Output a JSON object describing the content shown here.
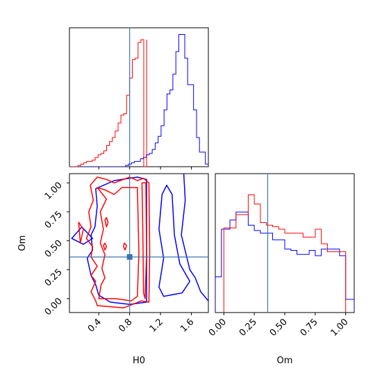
{
  "chart_data": {
    "type": "corner",
    "parameters": [
      "H0",
      "Om"
    ],
    "truth": {
      "H0": 0.8,
      "Om": 0.36
    },
    "series": [
      {
        "name": "",
        "color": "#ff0000"
      },
      {
        "name": "",
        "color": "#0000ff"
      }
    ],
    "truth_color": "#3b75af",
    "panels": {
      "H0_hist": {
        "type": "histogram",
        "xlim": [
          0.02,
          1.82
        ],
        "ylim": [
          0,
          1.05
        ],
        "red": {
          "x_end": 1.02,
          "heights": [
            0.0,
            0.0,
            0.0,
            0.01,
            0.02,
            0.03,
            0.04,
            0.04,
            0.05,
            0.07,
            0.09,
            0.1,
            0.12,
            0.16,
            0.19,
            0.22,
            0.27,
            0.33,
            0.39,
            0.4,
            0.54,
            0.67,
            0.81,
            0.82,
            0.94,
            0.96,
            0.0
          ]
        },
        "blue": {
          "x_end": 1.82,
          "heights": [
            0.0,
            0.0,
            0.0,
            0.0,
            0.0,
            0.0,
            0.0,
            0.0,
            0.0,
            0.0,
            0.0,
            0.0,
            0.0,
            0.0,
            0.0,
            0.0,
            0.0,
            0.0,
            0.0,
            0.01,
            0.02,
            0.03,
            0.04,
            0.04,
            0.06,
            0.07,
            0.09,
            0.1,
            0.13,
            0.18,
            0.23,
            0.31,
            0.43,
            0.55,
            0.58,
            0.7,
            0.87,
            1.0,
            1.0,
            0.82,
            0.62,
            0.62,
            0.43,
            0.22,
            0.11,
            0.11,
            0.02
          ]
        }
      },
      "Om_vs_H0": {
        "type": "contour",
        "xlabel": "H0",
        "ylabel": "Om",
        "xlim": [
          0.02,
          1.82
        ],
        "ylim": [
          -0.12,
          1.08
        ],
        "xticks": [
          "0.4",
          "0.8",
          "1.2",
          "1.6"
        ],
        "yticks": [
          "0.00",
          "0.25",
          "0.50",
          "0.75",
          "1.00"
        ]
      },
      "Om_hist": {
        "type": "histogram",
        "xlabel": "Om",
        "xlim": [
          -0.07,
          1.07
        ],
        "ylim": [
          0,
          1.05
        ],
        "xticks": [
          "0.00",
          "0.25",
          "0.50",
          "0.75",
          "1.00"
        ],
        "red": {
          "bins": [
            0.0,
            0.05,
            0.1,
            0.15,
            0.2,
            0.25,
            0.3,
            0.35,
            0.4,
            0.45,
            0.5,
            0.55,
            0.6,
            0.65,
            0.7,
            0.75,
            0.8,
            0.85,
            0.9,
            0.95,
            1.0
          ],
          "heights": [
            0.64,
            0.64,
            0.74,
            0.74,
            0.89,
            0.82,
            0.68,
            0.66,
            0.65,
            0.63,
            0.6,
            0.6,
            0.6,
            0.57,
            0.57,
            0.63,
            0.52,
            0.46,
            0.46,
            0.46
          ]
        },
        "blue": {
          "bins": [
            -0.07,
            -0.02,
            0.0,
            0.05,
            0.1,
            0.15,
            0.2,
            0.25,
            0.3,
            0.35,
            0.4,
            0.45,
            0.5,
            0.55,
            0.6,
            0.65,
            0.7,
            0.75,
            0.8,
            0.85,
            0.9,
            0.95,
            1.0,
            1.07
          ],
          "heights": [
            0.27,
            0.63,
            0.63,
            0.7,
            0.76,
            0.76,
            0.66,
            0.62,
            0.6,
            0.6,
            0.55,
            0.55,
            0.48,
            0.47,
            0.44,
            0.44,
            0.47,
            0.43,
            0.48,
            0.48,
            0.48,
            0.43,
            0.1
          ]
        }
      }
    }
  }
}
